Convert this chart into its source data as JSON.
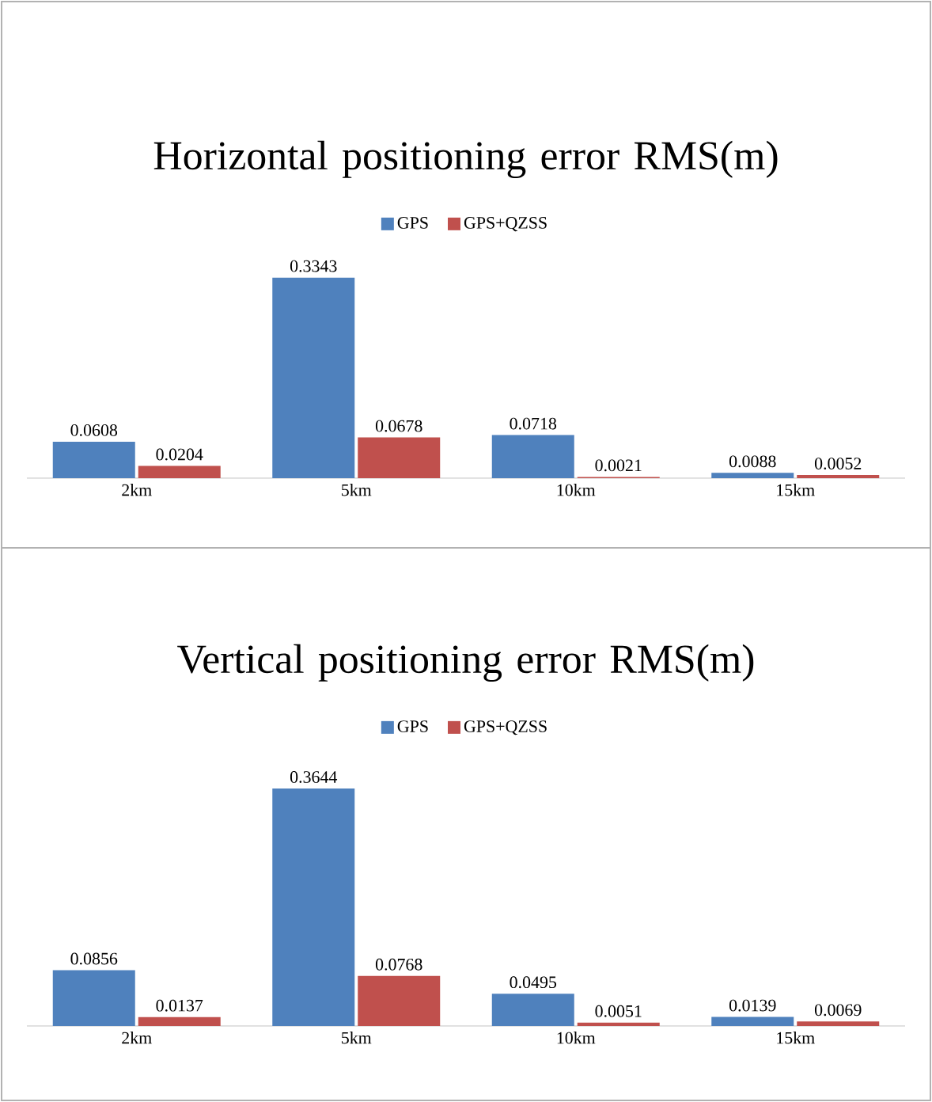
{
  "chart_data": [
    {
      "type": "bar",
      "title": "Horizontal positioning error RMS(m)",
      "categories": [
        "2km",
        "5km",
        "10km",
        "15km"
      ],
      "legend": "top",
      "data_labels": true,
      "series": [
        {
          "name": "GPS",
          "color": "#4f81bd",
          "values": [
            0.0608,
            0.3343,
            0.0718,
            0.0088
          ]
        },
        {
          "name": "GPS+QZSS",
          "color": "#c0504d",
          "values": [
            0.0204,
            0.0678,
            0.0021,
            0.0052
          ]
        }
      ]
    },
    {
      "type": "bar",
      "title": "Vertical positioning error RMS(m)",
      "categories": [
        "2km",
        "5km",
        "10km",
        "15km"
      ],
      "legend": "top",
      "data_labels": true,
      "series": [
        {
          "name": "GPS",
          "color": "#4f81bd",
          "values": [
            0.0856,
            0.3644,
            0.0495,
            0.0139
          ]
        },
        {
          "name": "GPS+QZSS",
          "color": "#c0504d",
          "values": [
            0.0137,
            0.0768,
            0.0051,
            0.0069
          ]
        }
      ]
    }
  ]
}
